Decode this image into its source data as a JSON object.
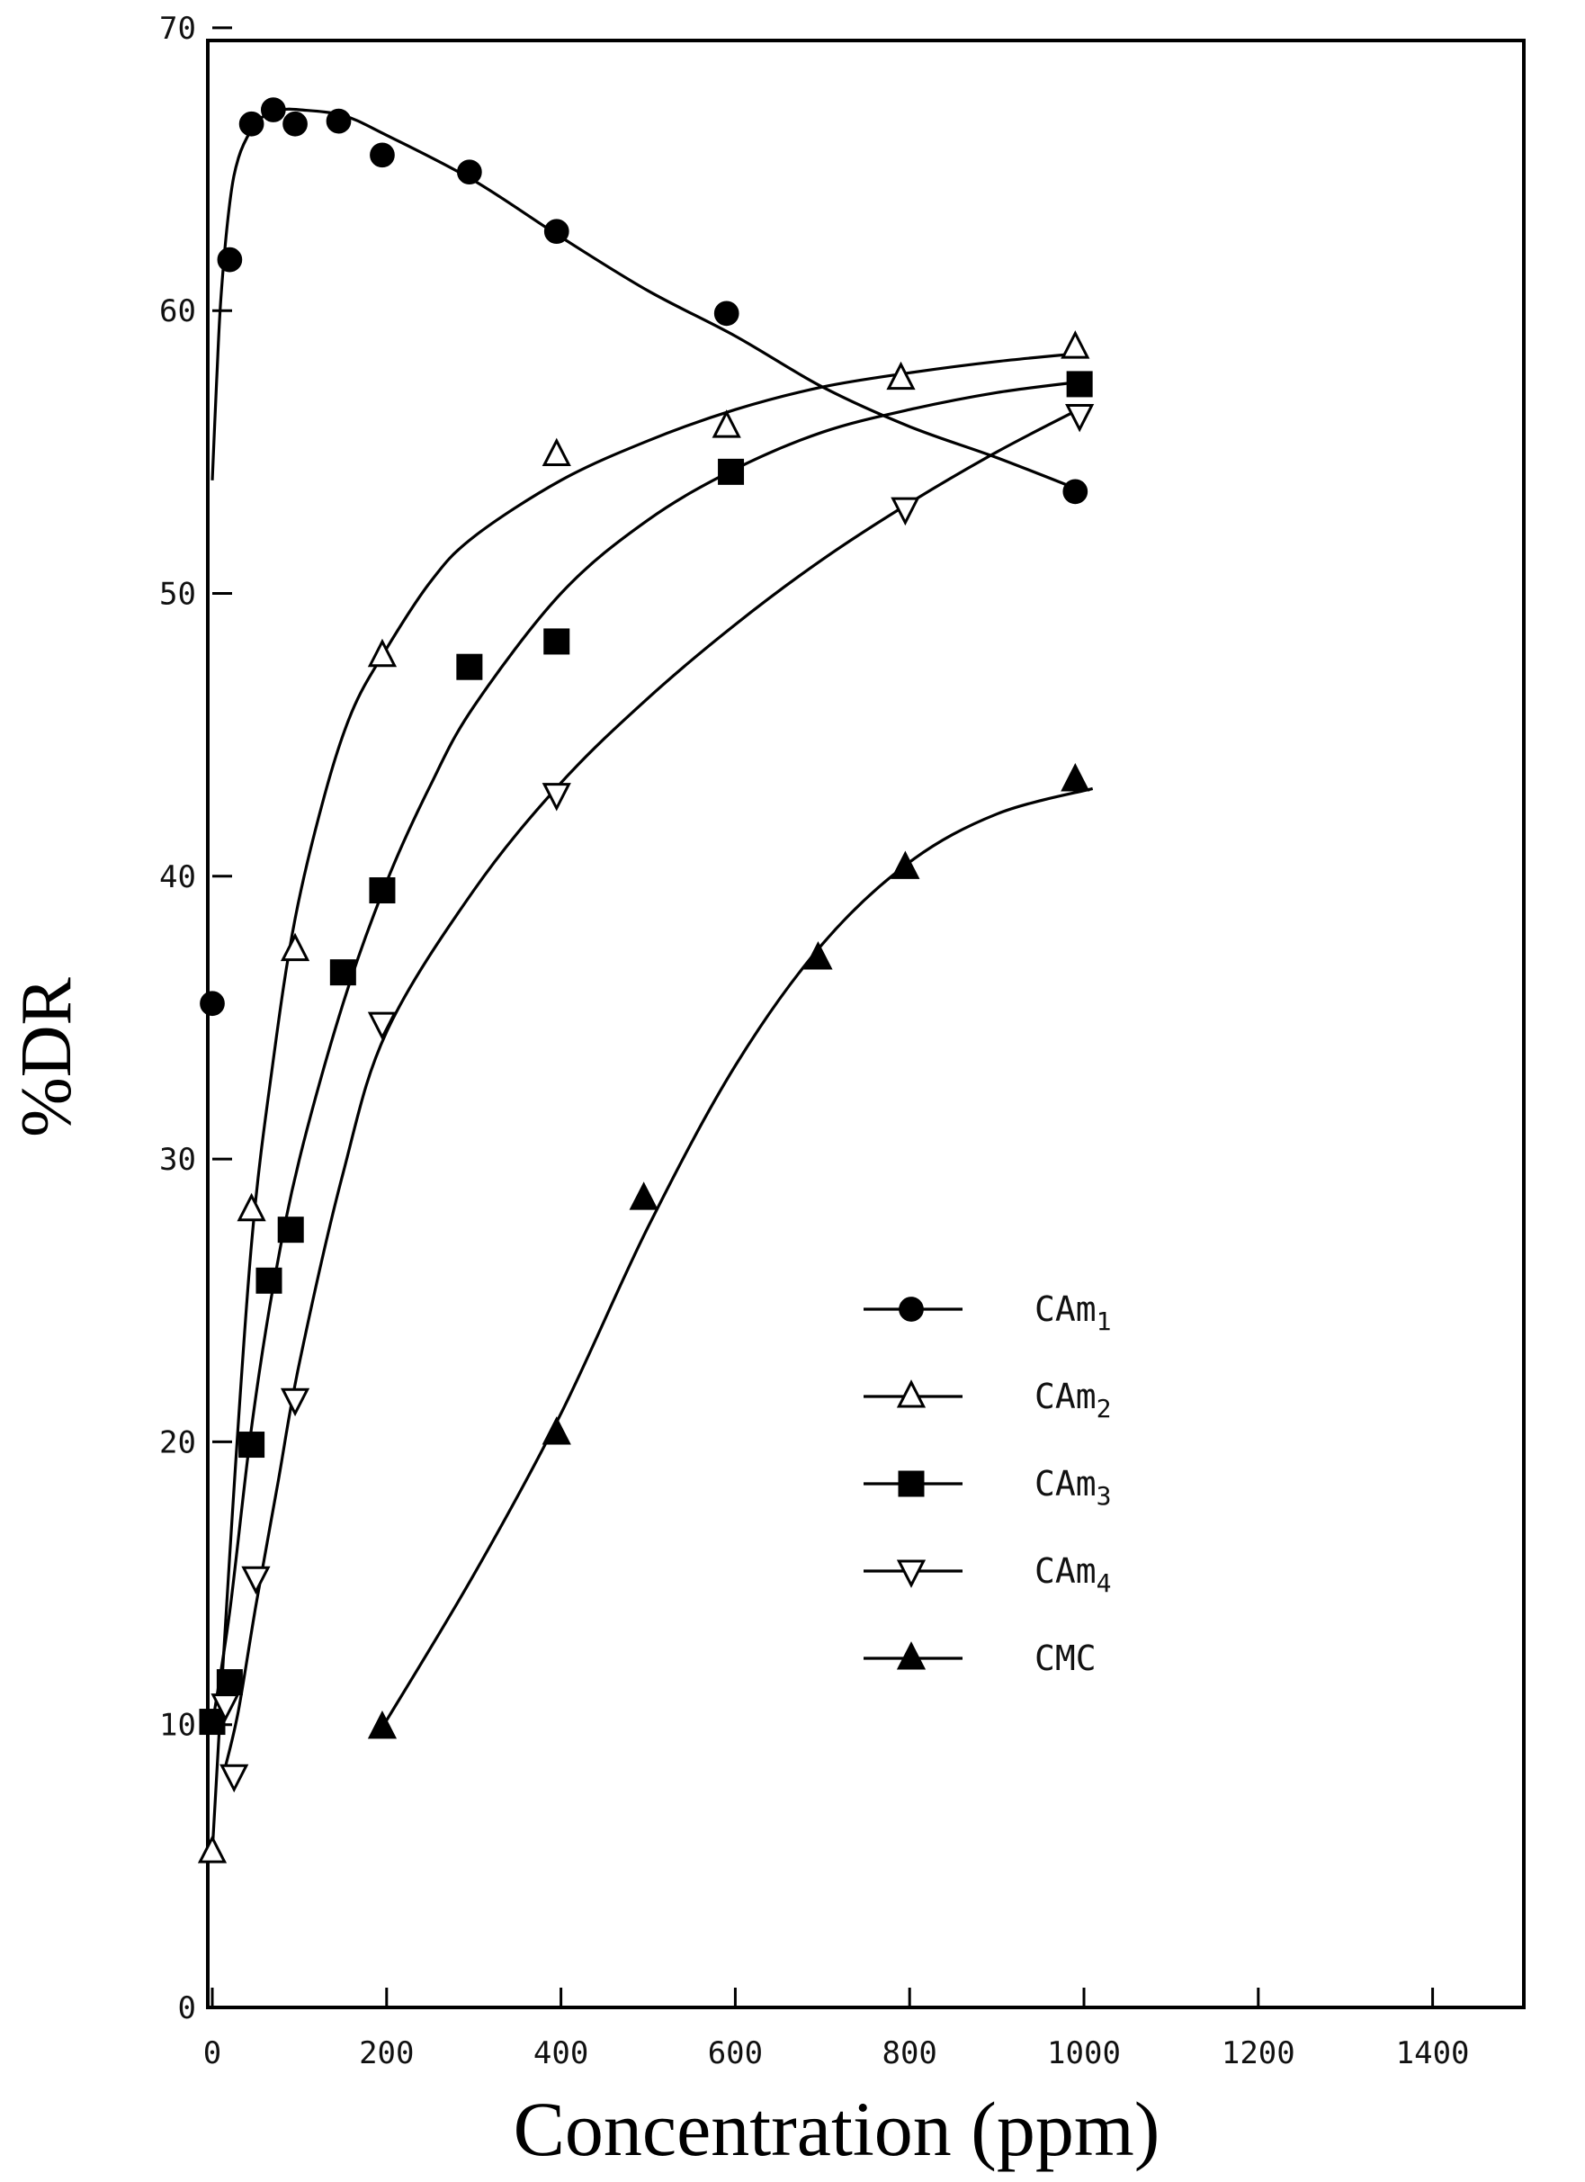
{
  "chart_data": {
    "type": "line",
    "title": "",
    "xlabel": "Concentration (ppm)",
    "ylabel": "%DR",
    "xlim": [
      0,
      1400
    ],
    "ylim": [
      0,
      70
    ],
    "xticks": [
      0,
      200,
      400,
      600,
      800,
      1000,
      1200,
      1400
    ],
    "yticks": [
      0,
      10,
      20,
      30,
      40,
      50,
      60,
      70
    ],
    "grid": false,
    "legend_position": "lower-right",
    "series": [
      {
        "name": "CAm1",
        "label_base": "CAm",
        "label_sub": "1",
        "marker": "filled-circle",
        "x": [
          0,
          20,
          45,
          70,
          95,
          145,
          195,
          295,
          395,
          590,
          990
        ],
        "y": [
          35.5,
          61.8,
          66.6,
          67.1,
          66.6,
          66.7,
          65.5,
          64.9,
          62.8,
          59.9,
          53.6
        ],
        "curve_x": [
          0,
          5,
          10,
          20,
          30,
          45,
          60,
          80,
          100,
          150,
          200,
          300,
          400,
          500,
          600,
          700,
          800,
          900,
          1000
        ],
        "curve_y": [
          54,
          57.5,
          60.5,
          63.8,
          65.4,
          66.4,
          66.9,
          67.1,
          67.1,
          66.9,
          66.2,
          64.6,
          62.6,
          60.7,
          59.1,
          57.3,
          55.9,
          54.8,
          53.6
        ]
      },
      {
        "name": "CAm2",
        "label_base": "CAm",
        "label_sub": "2",
        "marker": "open-triangle-up",
        "x": [
          0,
          45,
          95,
          195,
          395,
          590,
          790,
          990
        ],
        "y": [
          5.5,
          28.2,
          37.4,
          47.8,
          54.9,
          55.9,
          57.6,
          58.7
        ],
        "curve_x": [
          0,
          20,
          45,
          70,
          95,
          130,
          160,
          195,
          250,
          300,
          400,
          500,
          600,
          700,
          800,
          900,
          1000
        ],
        "curve_y": [
          5.5,
          16,
          27,
          33.5,
          38.5,
          43,
          45.8,
          47.8,
          50.4,
          52,
          54,
          55.4,
          56.5,
          57.3,
          57.8,
          58.2,
          58.5
        ]
      },
      {
        "name": "CAm3",
        "label_base": "CAm",
        "label_sub": "3",
        "marker": "filled-square",
        "x": [
          0,
          20,
          45,
          65,
          90,
          150,
          195,
          295,
          395,
          595,
          995
        ],
        "y": [
          10.1,
          11.5,
          19.9,
          25.7,
          27.5,
          36.6,
          39.5,
          47.4,
          48.3,
          54.3,
          57.4
        ],
        "curve_x": [
          0,
          20,
          45,
          70,
          100,
          150,
          200,
          250,
          300,
          400,
          500,
          600,
          700,
          800,
          900,
          1000
        ],
        "curve_y": [
          10,
          14,
          20.5,
          25.5,
          30,
          35.5,
          39.8,
          43.2,
          46,
          50,
          52.6,
          54.4,
          55.7,
          56.5,
          57.1,
          57.5
        ]
      },
      {
        "name": "CAm4",
        "label_base": "CAm",
        "label_sub": "4",
        "marker": "open-triangle-down",
        "x": [
          15,
          25,
          50,
          95,
          195,
          395,
          795,
          995
        ],
        "y": [
          10.7,
          8.2,
          15.2,
          21.5,
          34.8,
          42.9,
          53.0,
          56.3
        ],
        "curve_x": [
          15,
          30,
          50,
          75,
          100,
          150,
          200,
          300,
          400,
          500,
          600,
          700,
          800,
          900,
          1000
        ],
        "curve_y": [
          8.5,
          10.5,
          14.2,
          18.5,
          22.8,
          29.5,
          34.5,
          39.5,
          43.3,
          46.3,
          48.9,
          51.2,
          53.2,
          55,
          56.6
        ]
      },
      {
        "name": "CMC",
        "label_base": "CMC",
        "label_sub": "",
        "marker": "filled-triangle-up",
        "x": [
          195,
          395,
          495,
          695,
          795,
          990
        ],
        "y": [
          9.9,
          20.3,
          28.6,
          37.1,
          40.3,
          43.4
        ],
        "curve_x": [
          195,
          300,
          400,
          500,
          600,
          700,
          800,
          900,
          1010
        ],
        "curve_y": [
          9.9,
          15.3,
          21,
          27.6,
          33.3,
          37.6,
          40.5,
          42.2,
          43.1
        ]
      }
    ]
  }
}
